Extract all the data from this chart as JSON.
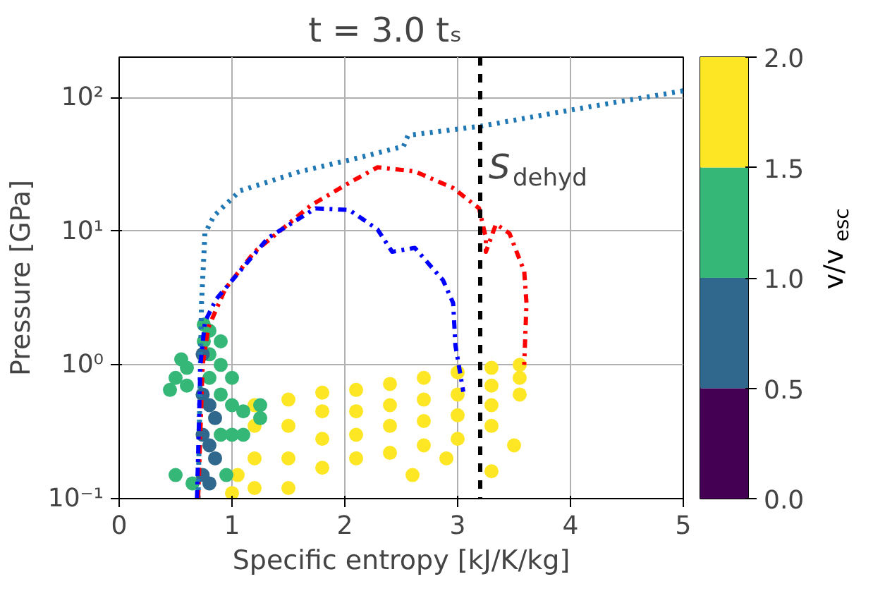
{
  "chart_data": {
    "type": "scatter",
    "title": "t =    3.0 tₛ",
    "xlabel": "Specific entropy [kJ/K/kg]",
    "ylabel": "Pressure [GPa]",
    "clabel": "v/v$_{esc}$",
    "xlim": [
      0,
      5
    ],
    "xticks": [
      0,
      1,
      2,
      3,
      4,
      5
    ],
    "ylim": [
      0.1,
      200
    ],
    "yticks": [
      {
        "value": 0.1,
        "label": "10⁻¹"
      },
      {
        "value": 1,
        "label": "10⁰"
      },
      {
        "value": 10,
        "label": "10¹"
      },
      {
        "value": 100,
        "label": "10²"
      }
    ],
    "log": "y",
    "grid": true,
    "clim": [
      0,
      2
    ],
    "cticks": [
      {
        "value": 0,
        "label": "0.0"
      },
      {
        "value": 0.5,
        "label": "0.5"
      },
      {
        "value": 1,
        "label": "1.0"
      },
      {
        "value": 1.5,
        "label": "1.5"
      },
      {
        "value": 2,
        "label": "2.0"
      }
    ],
    "ref_lines": [
      {
        "axis": "x",
        "value": 3.2,
        "label": "S$_{dehyd}$",
        "color": "#000000",
        "line_style": "dashed"
      }
    ],
    "series": [
      {
        "colors": [
          "#fde724",
          "#fde724",
          "#fde724",
          "#fde724",
          "#fde724",
          "#fde724",
          "#fde724",
          "#fde724",
          "#fde724",
          "#fde724",
          "#fde724",
          "#fde724",
          "#fde724",
          "#fde724",
          "#fde724",
          "#fde724",
          "#fde724",
          "#fde724",
          "#fde724",
          "#fde724",
          "#fde724",
          "#fde724",
          "#fde724",
          "#fde724",
          "#fde724",
          "#fde724",
          "#fde724",
          "#fde724",
          "#fde724",
          "#fde724",
          "#fde724",
          "#fde724",
          "#fde724",
          "#fde724",
          "#fde724",
          "#fde724",
          "#fde724",
          "#fde724",
          "#fde724",
          "#fde724",
          "#fde724",
          "#35b778",
          "#35b778",
          "#35b778",
          "#35b778",
          "#35b778",
          "#35b778",
          "#35b778",
          "#35b778",
          "#35b778",
          "#35b778",
          "#35b778",
          "#35b778",
          "#35b778",
          "#35b778",
          "#35b778",
          "#35b778",
          "#35b778",
          "#35b778",
          "#35b778",
          "#35b778",
          "#35b778",
          "#35b778",
          "#35b778",
          "#35b778",
          "#30678d",
          "#30678d",
          "#30678d",
          "#30678d",
          "#30678d",
          "#30678d",
          "#30678d",
          "#30678d",
          "#30678d"
        ],
        "x": [
          1.2,
          1.2,
          1.2,
          1.2,
          1.5,
          1.5,
          1.5,
          1.5,
          1.8,
          1.8,
          1.8,
          1.8,
          2.1,
          2.1,
          2.1,
          2.1,
          2.4,
          2.4,
          2.4,
          2.4,
          2.7,
          2.7,
          2.7,
          2.7,
          3.0,
          3.0,
          3.0,
          3.0,
          3.3,
          3.3,
          3.3,
          3.3,
          3.55,
          3.55,
          3.55,
          2.6,
          3.3,
          2.9,
          3.5,
          1.0,
          1.05,
          0.75,
          0.75,
          0.8,
          0.8,
          0.8,
          0.9,
          0.9,
          0.9,
          0.9,
          1.0,
          1.0,
          1.0,
          1.1,
          1.1,
          1.25,
          1.25,
          0.95,
          0.5,
          0.55,
          0.6,
          0.45,
          0.6,
          0.5,
          0.65,
          0.74,
          0.74,
          0.74,
          0.74,
          0.8,
          0.8,
          0.8,
          0.85,
          0.85
        ],
        "values": [
          0.12,
          0.2,
          0.35,
          0.5,
          0.12,
          0.2,
          0.35,
          0.55,
          0.17,
          0.28,
          0.45,
          0.62,
          0.2,
          0.3,
          0.45,
          0.65,
          0.22,
          0.35,
          0.5,
          0.72,
          0.25,
          0.38,
          0.55,
          0.8,
          0.28,
          0.42,
          0.6,
          0.88,
          0.35,
          0.5,
          0.7,
          0.95,
          0.6,
          0.8,
          1.0,
          0.15,
          0.16,
          0.2,
          0.25,
          0.11,
          0.15,
          2.0,
          1.5,
          1.8,
          1.2,
          0.8,
          1.5,
          1.0,
          0.6,
          0.3,
          0.8,
          0.5,
          0.3,
          0.45,
          0.3,
          0.5,
          0.4,
          0.15,
          0.8,
          1.1,
          0.7,
          0.65,
          0.95,
          0.15,
          0.13,
          1.2,
          0.6,
          0.3,
          0.15,
          0.5,
          0.25,
          0.13,
          0.4,
          0.2
        ],
        "marker": "circle"
      },
      {
        "type": "line",
        "color": "#1f77b4",
        "line_style": "dotted",
        "x": [
          0.7,
          0.72,
          0.73,
          0.76,
          0.84,
          1.07,
          1.61,
          2.04,
          2.52,
          2.56,
          3.21,
          4.13,
          5.0
        ],
        "values": [
          0.1,
          1,
          2.9,
          9.6,
          13,
          20,
          28,
          34,
          43,
          52,
          61,
          84,
          112
        ]
      },
      {
        "type": "line",
        "color": "#ff0000",
        "line_style": "dashdot",
        "x": [
          0.7,
          0.74,
          0.79,
          0.94,
          1.2,
          1.7,
          2.04,
          2.29,
          2.62,
          2.96,
          3.19,
          3.25,
          3.25,
          3.34,
          3.46,
          3.59,
          3.61,
          3.59
        ],
        "values": [
          0.1,
          1,
          1.9,
          3.7,
          7.0,
          15.6,
          23,
          30,
          28,
          21,
          14.8,
          8.9,
          7,
          11.3,
          9.6,
          5,
          2.9,
          1.0
        ]
      },
      {
        "type": "line",
        "color": "#0000ff",
        "line_style": "dashdot",
        "x": [
          0.69,
          0.72,
          0.76,
          0.86,
          1.32,
          1.74,
          2.04,
          2.29,
          2.42,
          2.62,
          2.87,
          2.96,
          2.98,
          3.05
        ],
        "values": [
          0.1,
          1,
          2.1,
          3.1,
          8.9,
          14.8,
          14.4,
          10.3,
          7,
          7.5,
          4.3,
          2.9,
          1.4,
          0.63
        ]
      }
    ]
  }
}
